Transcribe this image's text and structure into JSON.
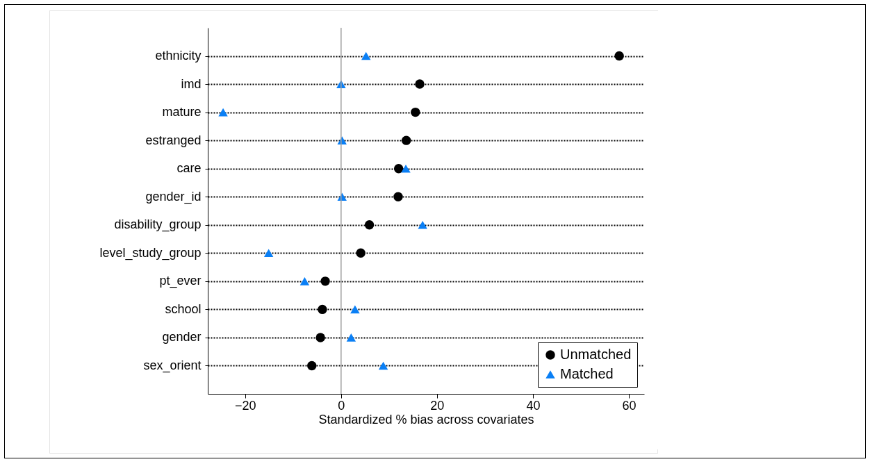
{
  "chart_data": {
    "type": "scatter",
    "xlabel": "Standardized % bias across covariates",
    "categories": [
      "ethnicity",
      "imd",
      "mature",
      "estranged",
      "care",
      "gender_id",
      "disability_group",
      "level_study_group",
      "pt_ever",
      "school",
      "gender",
      "sex_orient"
    ],
    "orientation": "horizontal",
    "series": [
      {
        "name": "Unmatched",
        "color": "#000000",
        "marker": "circle",
        "values": [
          58,
          16.4,
          15.5,
          13.6,
          12.0,
          11.9,
          5.9,
          4.1,
          -3.3,
          -3.9,
          -4.3,
          -6.1
        ]
      },
      {
        "name": "Matched",
        "color": "#0a7ff5",
        "marker": "triangle",
        "values": [
          5.2,
          0,
          -24.6,
          0.2,
          13.5,
          0.2,
          17.0,
          -15.1,
          -7.6,
          2.9,
          2.1,
          8.8
        ]
      }
    ],
    "xlim": [
      -27.8,
      63.2
    ],
    "xticks": [
      -20,
      0,
      20,
      40,
      60
    ],
    "ref_lines": [
      {
        "axis": "x",
        "value": 0,
        "color": "#a0a0a0"
      }
    ],
    "grid": "y",
    "line_style": "dotted",
    "legend": "bottom right"
  }
}
